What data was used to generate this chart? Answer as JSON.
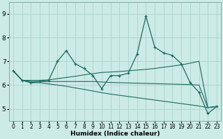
{
  "xlabel": "Humidex (Indice chaleur)",
  "xlim": [
    -0.5,
    23.5
  ],
  "ylim": [
    4.5,
    9.5
  ],
  "yticks": [
    5,
    6,
    7,
    8,
    9
  ],
  "xticks": [
    0,
    1,
    2,
    3,
    4,
    5,
    6,
    7,
    8,
    9,
    10,
    11,
    12,
    13,
    14,
    15,
    16,
    17,
    18,
    19,
    20,
    21,
    22,
    23
  ],
  "bg_color": "#cceae6",
  "grid_color": "#aad4cf",
  "line_color": "#1a6b60",
  "y_main": [
    6.6,
    6.2,
    6.1,
    6.15,
    6.2,
    7.0,
    7.45,
    6.9,
    6.7,
    6.4,
    5.85,
    6.4,
    6.4,
    6.5,
    7.3,
    8.9,
    7.6,
    7.35,
    7.25,
    6.9,
    6.1,
    5.7,
    4.8,
    5.1
  ],
  "y_up": [
    6.6,
    6.2,
    6.2,
    6.2,
    6.22,
    6.27,
    6.32,
    6.37,
    6.43,
    6.48,
    6.53,
    6.55,
    6.57,
    6.6,
    6.63,
    6.66,
    6.7,
    6.75,
    6.8,
    6.85,
    6.92,
    7.0,
    5.05,
    5.1
  ],
  "y_flat": [
    6.6,
    6.2,
    6.15,
    6.15,
    6.15,
    6.15,
    6.15,
    6.15,
    6.15,
    6.15,
    6.13,
    6.11,
    6.1,
    6.09,
    6.08,
    6.07,
    6.06,
    6.05,
    6.04,
    6.03,
    6.02,
    6.0,
    5.05,
    5.1
  ],
  "y_down": [
    6.6,
    6.2,
    6.1,
    6.1,
    6.05,
    6.0,
    5.95,
    5.88,
    5.82,
    5.75,
    5.68,
    5.62,
    5.57,
    5.52,
    5.47,
    5.42,
    5.37,
    5.32,
    5.27,
    5.22,
    5.17,
    5.12,
    5.05,
    5.1
  ],
  "xlabel_fontsize": 6.5,
  "xlabel_bold": true,
  "tick_fontsize": 5.5,
  "ytick_fontsize": 6.5
}
